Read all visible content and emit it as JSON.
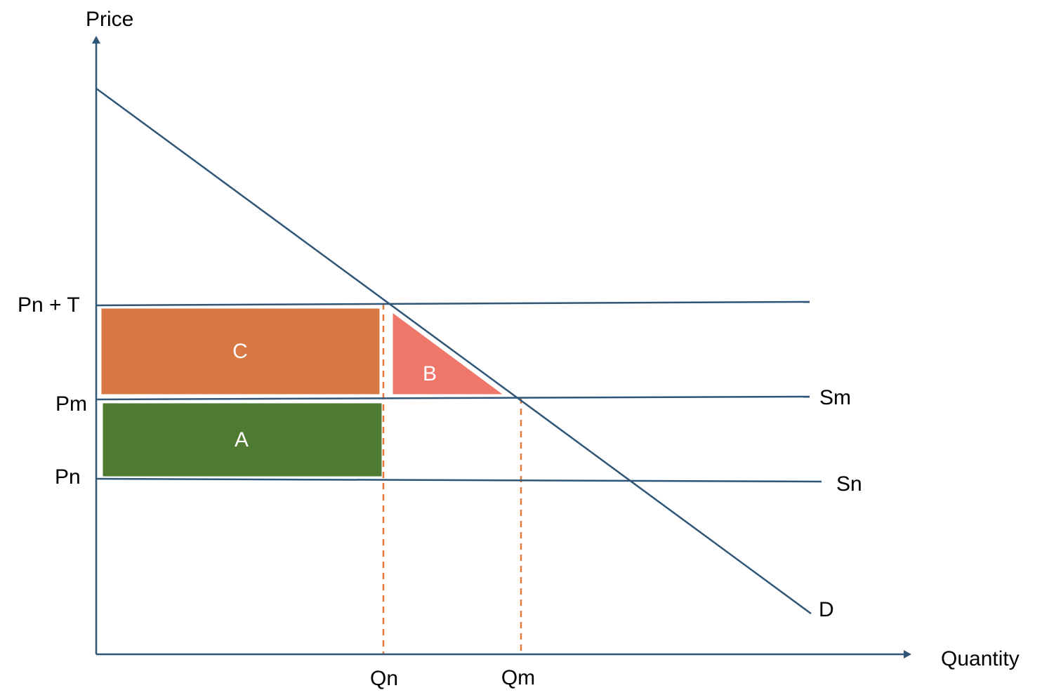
{
  "axes": {
    "y_label": "Price",
    "x_label": "Quantity",
    "color": "#2f5577"
  },
  "price_labels": {
    "pn_t": "Pn + T",
    "pm": "Pm",
    "pn": "Pn"
  },
  "quantity_labels": {
    "qn": "Qn",
    "qm": "Qm"
  },
  "curves": {
    "sm": "Sm",
    "sn": "Sn",
    "d": "D",
    "line_color": "#2f5577"
  },
  "areas": {
    "a": {
      "label": "A",
      "color": "#4e7a31"
    },
    "b": {
      "label": "B",
      "color": "#ee776a"
    },
    "c": {
      "label": "C",
      "color": "#d87943"
    }
  },
  "guide_color": "#e07b3f"
}
